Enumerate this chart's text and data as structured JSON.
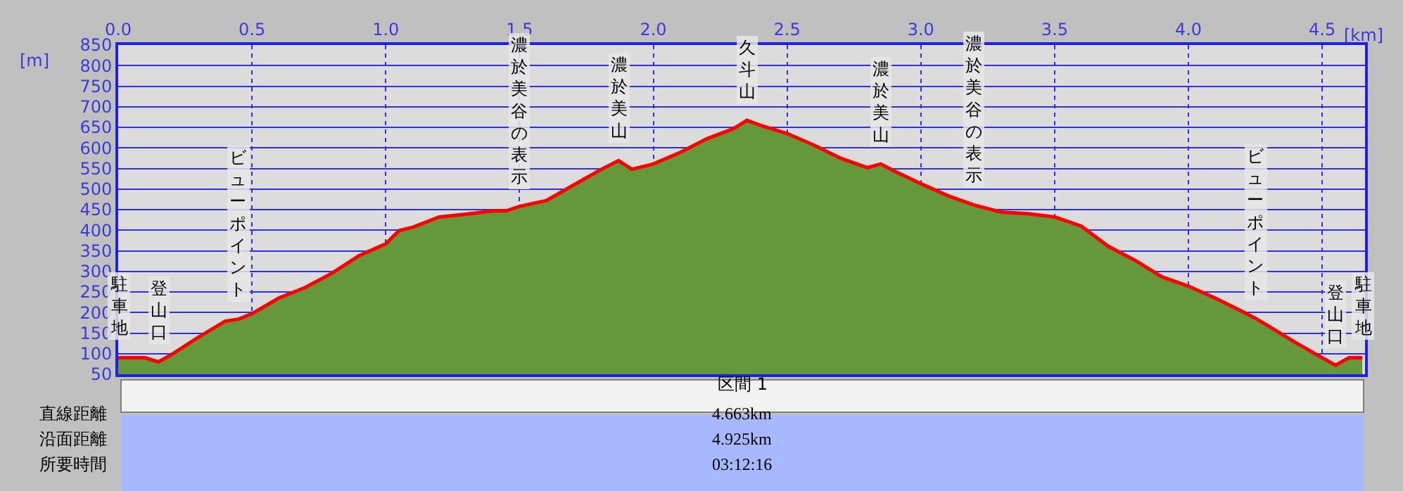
{
  "chart_data": {
    "type": "area",
    "xlabel": "[km]",
    "ylabel": "[m]",
    "x": [
      0,
      0.1,
      0.15,
      0.2,
      0.3,
      0.4,
      0.45,
      0.5,
      0.6,
      0.7,
      0.8,
      0.9,
      1.0,
      1.05,
      1.1,
      1.2,
      1.3,
      1.4,
      1.45,
      1.5,
      1.6,
      1.7,
      1.8,
      1.87,
      1.92,
      2.0,
      2.1,
      2.2,
      2.3,
      2.35,
      2.4,
      2.5,
      2.6,
      2.7,
      2.8,
      2.85,
      2.9,
      3.0,
      3.1,
      3.2,
      3.3,
      3.4,
      3.5,
      3.6,
      3.7,
      3.8,
      3.9,
      4.0,
      4.1,
      4.2,
      4.25,
      4.3,
      4.4,
      4.5,
      4.55,
      4.6,
      4.65
    ],
    "series": [
      {
        "color": "#64983a",
        "values": [
          90,
          90,
          80,
          98,
          140,
          179,
          184,
          197,
          235,
          261,
          296,
          338,
          367,
          399,
          407,
          432,
          439,
          447,
          447,
          458,
          472,
          509,
          546,
          569,
          548,
          561,
          589,
          622,
          647,
          667,
          655,
          635,
          607,
          575,
          552,
          561,
          544,
          513,
          484,
          461,
          444,
          440,
          432,
          410,
          361,
          327,
          287,
          264,
          235,
          203,
          186,
          167,
          127,
          90,
          72,
          90,
          90
        ]
      },
      {
        "type": "line",
        "color": "#ff0000",
        "values": [
          90,
          90,
          80,
          98,
          140,
          179,
          184,
          197,
          235,
          261,
          296,
          338,
          367,
          399,
          407,
          432,
          439,
          447,
          447,
          458,
          472,
          509,
          546,
          569,
          548,
          561,
          589,
          622,
          647,
          667,
          655,
          635,
          607,
          575,
          552,
          561,
          544,
          513,
          484,
          461,
          444,
          440,
          432,
          410,
          361,
          327,
          287,
          264,
          235,
          203,
          186,
          167,
          127,
          90,
          72,
          90,
          90
        ]
      }
    ],
    "xlim": [
      0,
      4.66
    ],
    "xticks": [
      {
        "value": 0,
        "label": "0.0"
      },
      {
        "value": 0.5,
        "label": "0.5"
      },
      {
        "value": 1,
        "label": "1.0"
      },
      {
        "value": 1.5,
        "label": "1.5"
      },
      {
        "value": 2,
        "label": "2.0"
      },
      {
        "value": 2.5,
        "label": "2.5"
      },
      {
        "value": 3,
        "label": "3.0"
      },
      {
        "value": 3.5,
        "label": "3.5"
      },
      {
        "value": 4,
        "label": "4.0"
      },
      {
        "value": 4.5,
        "label": "4.5"
      }
    ],
    "ylim": [
      50,
      850
    ],
    "yticks": [
      50,
      100,
      150,
      200,
      250,
      300,
      350,
      400,
      450,
      500,
      550,
      600,
      650,
      700,
      750,
      800,
      850
    ],
    "grid": true,
    "annotations": [
      {
        "text": "駐車地",
        "x": 0,
        "y": 90
      },
      {
        "text": "登山口",
        "x": 0.15,
        "y": 80
      },
      {
        "text": "ビューポイント",
        "x": 0.45,
        "y": 184
      },
      {
        "text": "濃於美谷の表示",
        "x": 1.5,
        "y": 458
      },
      {
        "text": "濃於美山",
        "x": 1.87,
        "y": 569
      },
      {
        "text": "久斗山",
        "x": 2.35,
        "y": 667
      },
      {
        "text": "濃於美山",
        "x": 2.85,
        "y": 561
      },
      {
        "text": "濃於美谷の表示",
        "x": 3.2,
        "y": 461
      },
      {
        "text": "ビューポイント",
        "x": 4.25,
        "y": 186
      },
      {
        "text": "登山口",
        "x": 4.55,
        "y": 72
      },
      {
        "text": "駐車地",
        "x": 4.65,
        "y": 90
      },
      "区間 1",
      "直線距離",
      "4.663km",
      "沿面距離",
      "4.925km",
      "所要時間",
      "03:12:16"
    ]
  }
}
